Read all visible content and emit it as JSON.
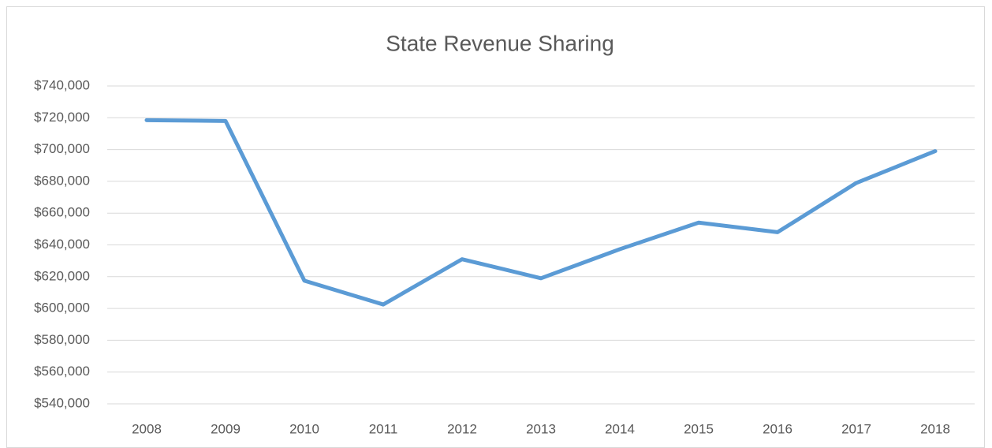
{
  "chart_data": {
    "type": "line",
    "title": "State Revenue Sharing",
    "categories": [
      "2008",
      "2009",
      "2010",
      "2011",
      "2012",
      "2013",
      "2014",
      "2015",
      "2016",
      "2017",
      "2018"
    ],
    "series": [
      {
        "name": "State Revenue Sharing",
        "color": "#5b9bd5",
        "values": [
          718500,
          718000,
          617500,
          602500,
          631000,
          619000,
          637300,
          654000,
          648000,
          679000,
          699000
        ]
      }
    ],
    "ylim": [
      540000,
      740000
    ],
    "yticks": [
      {
        "value": 540000,
        "label": "$540,000"
      },
      {
        "value": 560000,
        "label": "$560,000"
      },
      {
        "value": 580000,
        "label": "$580,000"
      },
      {
        "value": 600000,
        "label": "$600,000"
      },
      {
        "value": 620000,
        "label": "$620,000"
      },
      {
        "value": 640000,
        "label": "$640,000"
      },
      {
        "value": 660000,
        "label": "$660,000"
      },
      {
        "value": 680000,
        "label": "$680,000"
      },
      {
        "value": 700000,
        "label": "$700,000"
      },
      {
        "value": 720000,
        "label": "$720,000"
      },
      {
        "value": 740000,
        "label": "$740,000"
      }
    ],
    "grid": true
  }
}
